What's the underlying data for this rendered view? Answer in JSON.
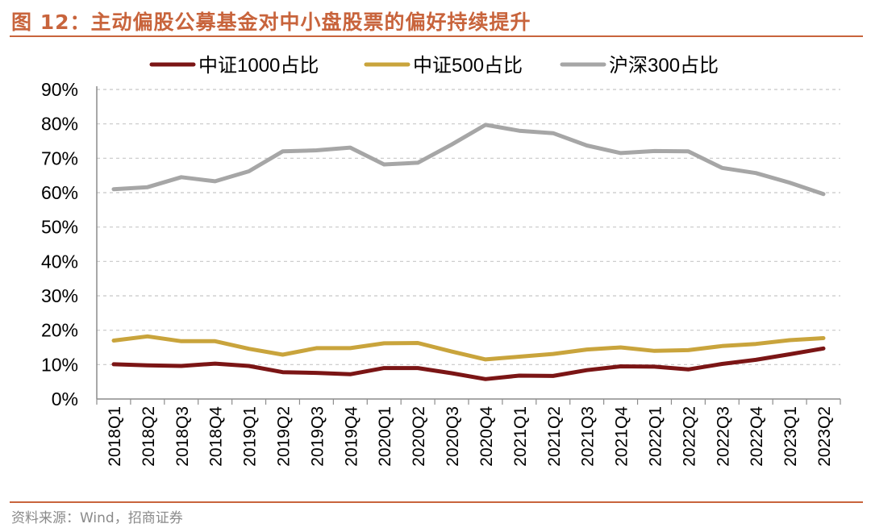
{
  "figure": {
    "title": "图 12：主动偏股公募基金对中小盘股票的偏好持续提升",
    "source": "资料来源：Wind，招商证券"
  },
  "colors": {
    "accent": "#c8643c",
    "csi1000": "#7b1515",
    "csi500": "#c9a43c",
    "hs300": "#a6a6a6",
    "grid": "#c8c8c8",
    "axis": "#8c8c8c",
    "text": "#000000"
  },
  "chart_data": {
    "type": "line",
    "title": "",
    "xlabel": "",
    "ylabel": "",
    "ylim": [
      0,
      90
    ],
    "yticks": [
      0,
      10,
      20,
      30,
      40,
      50,
      60,
      70,
      80,
      90
    ],
    "ytick_labels": [
      "0%",
      "10%",
      "20%",
      "30%",
      "40%",
      "50%",
      "60%",
      "70%",
      "80%",
      "90%"
    ],
    "grid": true,
    "legend_position": "top-center",
    "categories": [
      "2018Q1",
      "2018Q2",
      "2018Q3",
      "2018Q4",
      "2019Q1",
      "2019Q2",
      "2019Q3",
      "2019Q4",
      "2020Q1",
      "2020Q2",
      "2020Q3",
      "2020Q4",
      "2021Q1",
      "2021Q2",
      "2021Q3",
      "2021Q4",
      "2022Q1",
      "2022Q2",
      "2022Q3",
      "2022Q4",
      "2023Q1",
      "2023Q2"
    ],
    "series": [
      {
        "key": "csi1000",
        "name": "中证1000占比",
        "color": "#7b1515",
        "values": [
          10.1,
          9.8,
          9.6,
          10.3,
          9.6,
          7.8,
          7.6,
          7.2,
          9.0,
          9.0,
          7.5,
          5.8,
          6.8,
          6.7,
          8.4,
          9.5,
          9.4,
          8.6,
          10.2,
          11.4,
          13.0,
          14.7
        ]
      },
      {
        "key": "csi500",
        "name": "中证500占比",
        "color": "#c9a43c",
        "values": [
          17.0,
          18.2,
          16.8,
          16.8,
          14.6,
          12.9,
          14.8,
          14.8,
          16.2,
          16.3,
          13.8,
          11.5,
          12.3,
          13.1,
          14.4,
          15.0,
          14.0,
          14.2,
          15.4,
          16.0,
          17.1,
          17.7
        ]
      },
      {
        "key": "hs300",
        "name": "沪深300占比",
        "color": "#a6a6a6",
        "values": [
          61.0,
          61.6,
          64.5,
          63.3,
          66.2,
          72.0,
          72.3,
          73.1,
          68.2,
          68.7,
          74.0,
          79.7,
          78.0,
          77.3,
          73.7,
          71.5,
          72.1,
          72.0,
          67.2,
          65.7,
          62.9,
          59.6
        ]
      }
    ]
  }
}
